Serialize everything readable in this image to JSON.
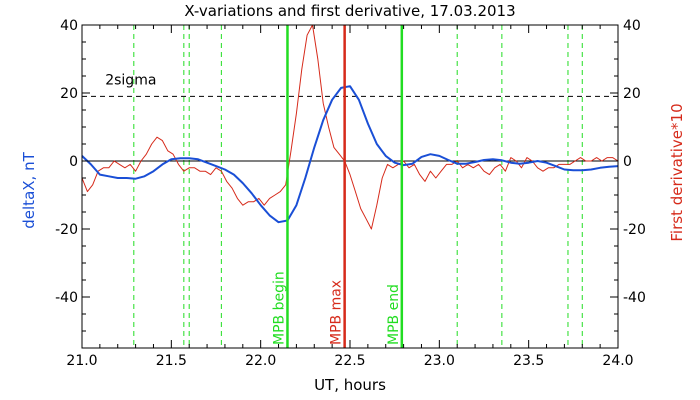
{
  "chart_data": {
    "type": "line",
    "title": "X-variations and first derivative, 17.03.2013",
    "xlabel": "UT, hours",
    "ylabel_left": "deltaX, nT",
    "ylabel_right": "First derivative*10",
    "xlim": [
      21.0,
      24.0
    ],
    "ylim": [
      -55,
      40
    ],
    "x_ticks": [
      21.0,
      21.5,
      22.0,
      22.5,
      23.0,
      23.5,
      24.0
    ],
    "x_tick_labels": [
      "21.0",
      "21.5",
      "22.0",
      "22.5",
      "23.0",
      "23.5",
      "24.0"
    ],
    "y_ticks": [
      -40,
      -20,
      0,
      20,
      40
    ],
    "y_tick_labels": [
      "-40",
      "-20",
      "0",
      "20",
      "40"
    ],
    "colors": {
      "deltax": "#1a4fd6",
      "derivative": "#d62a1a",
      "mpb_begin": "#22dd22",
      "mpb_max": "#d62a1a",
      "mpb_end": "#22dd22",
      "dashed_green": "#22dd22",
      "sigma": "#000000"
    },
    "sigma_line": {
      "value": 19,
      "label": "2sigma"
    },
    "zero_line": 0,
    "vertical_lines": [
      {
        "x": 22.15,
        "label": "MPB begin",
        "color": "#22dd22"
      },
      {
        "x": 22.47,
        "label": "MPB max",
        "color": "#d62a1a"
      },
      {
        "x": 22.79,
        "label": "MPB end",
        "color": "#22dd22"
      }
    ],
    "dashed_vertical_lines": [
      21.29,
      21.57,
      21.6,
      21.78,
      23.1,
      23.35,
      23.72,
      23.8
    ],
    "series": [
      {
        "name": "deltaX, nT",
        "color": "#1a4fd6",
        "x": [
          21.0,
          21.05,
          21.1,
          21.15,
          21.2,
          21.25,
          21.3,
          21.35,
          21.4,
          21.45,
          21.5,
          21.55,
          21.6,
          21.65,
          21.7,
          21.75,
          21.8,
          21.85,
          21.9,
          21.95,
          22.0,
          22.05,
          22.1,
          22.15,
          22.2,
          22.25,
          22.3,
          22.35,
          22.4,
          22.45,
          22.5,
          22.55,
          22.6,
          22.65,
          22.7,
          22.75,
          22.8,
          22.85,
          22.9,
          22.95,
          23.0,
          23.05,
          23.1,
          23.15,
          23.2,
          23.25,
          23.3,
          23.35,
          23.4,
          23.45,
          23.5,
          23.55,
          23.6,
          23.65,
          23.7,
          23.75,
          23.8,
          23.85,
          23.9,
          23.95,
          24.0
        ],
        "values": [
          1.5,
          -1,
          -4,
          -4.5,
          -5,
          -5,
          -5.2,
          -4.5,
          -3,
          -1,
          0.5,
          0.8,
          0.8,
          0.5,
          -0.5,
          -1.5,
          -2.5,
          -4,
          -6.5,
          -9.5,
          -13,
          -16,
          -18,
          -17.5,
          -13,
          -5,
          4,
          12,
          18,
          21.5,
          22,
          18,
          11,
          5,
          1.5,
          -0.5,
          -1.2,
          -0.8,
          1.2,
          2,
          1.5,
          0.3,
          -0.8,
          -0.8,
          -0.3,
          0.3,
          0.5,
          0.2,
          -0.5,
          -0.8,
          -0.5,
          0,
          -0.5,
          -1.5,
          -2.5,
          -2.7,
          -2.7,
          -2.5,
          -2,
          -1.7,
          -1.5
        ]
      },
      {
        "name": "First derivative*10",
        "color": "#d62a1a",
        "x": [
          21.0,
          21.03,
          21.06,
          21.09,
          21.12,
          21.15,
          21.18,
          21.21,
          21.24,
          21.27,
          21.3,
          21.33,
          21.36,
          21.39,
          21.42,
          21.45,
          21.48,
          21.51,
          21.54,
          21.57,
          21.6,
          21.63,
          21.66,
          21.69,
          21.72,
          21.75,
          21.78,
          21.81,
          21.84,
          21.87,
          21.9,
          21.93,
          21.96,
          21.99,
          22.02,
          22.05,
          22.08,
          22.11,
          22.14,
          22.17,
          22.2,
          22.23,
          22.26,
          22.29,
          22.32,
          22.35,
          22.38,
          22.41,
          22.44,
          22.47,
          22.5,
          22.53,
          22.56,
          22.59,
          22.62,
          22.65,
          22.68,
          22.71,
          22.74,
          22.77,
          22.8,
          22.83,
          22.86,
          22.89,
          22.92,
          22.95,
          22.98,
          23.01,
          23.04,
          23.07,
          23.1,
          23.13,
          23.16,
          23.19,
          23.22,
          23.25,
          23.28,
          23.31,
          23.34,
          23.37,
          23.4,
          23.43,
          23.46,
          23.49,
          23.52,
          23.55,
          23.58,
          23.61,
          23.64,
          23.67,
          23.7,
          23.73,
          23.76,
          23.79,
          23.82,
          23.85,
          23.88,
          23.91,
          23.94,
          23.97,
          24.0
        ],
        "values": [
          -5,
          -9,
          -7,
          -3,
          -2,
          -2,
          0,
          -1,
          -2,
          -1,
          -3,
          0,
          2,
          5,
          7,
          6,
          3,
          2,
          -1,
          -3,
          -2,
          -2,
          -3,
          -3,
          -4,
          -2,
          -3,
          -6,
          -8,
          -11,
          -13,
          -12,
          -12,
          -11,
          -13,
          -11,
          -10,
          -9,
          -7,
          3,
          14,
          27,
          37,
          40,
          30,
          17,
          10,
          4,
          2,
          0,
          -4,
          -9,
          -14,
          -17,
          -20,
          -13,
          -5,
          -1,
          -2,
          -1,
          0,
          -2,
          -1,
          -4,
          -6,
          -3,
          -5,
          -3,
          -1,
          -1,
          0,
          -2,
          -1,
          -2,
          -1,
          -3,
          -4,
          -2,
          -1,
          -3,
          1,
          0,
          -2,
          1,
          0,
          -2,
          -3,
          -2,
          -2,
          -1,
          -1,
          -1,
          0,
          1,
          0,
          0,
          1,
          0,
          1,
          1,
          0
        ]
      }
    ]
  }
}
